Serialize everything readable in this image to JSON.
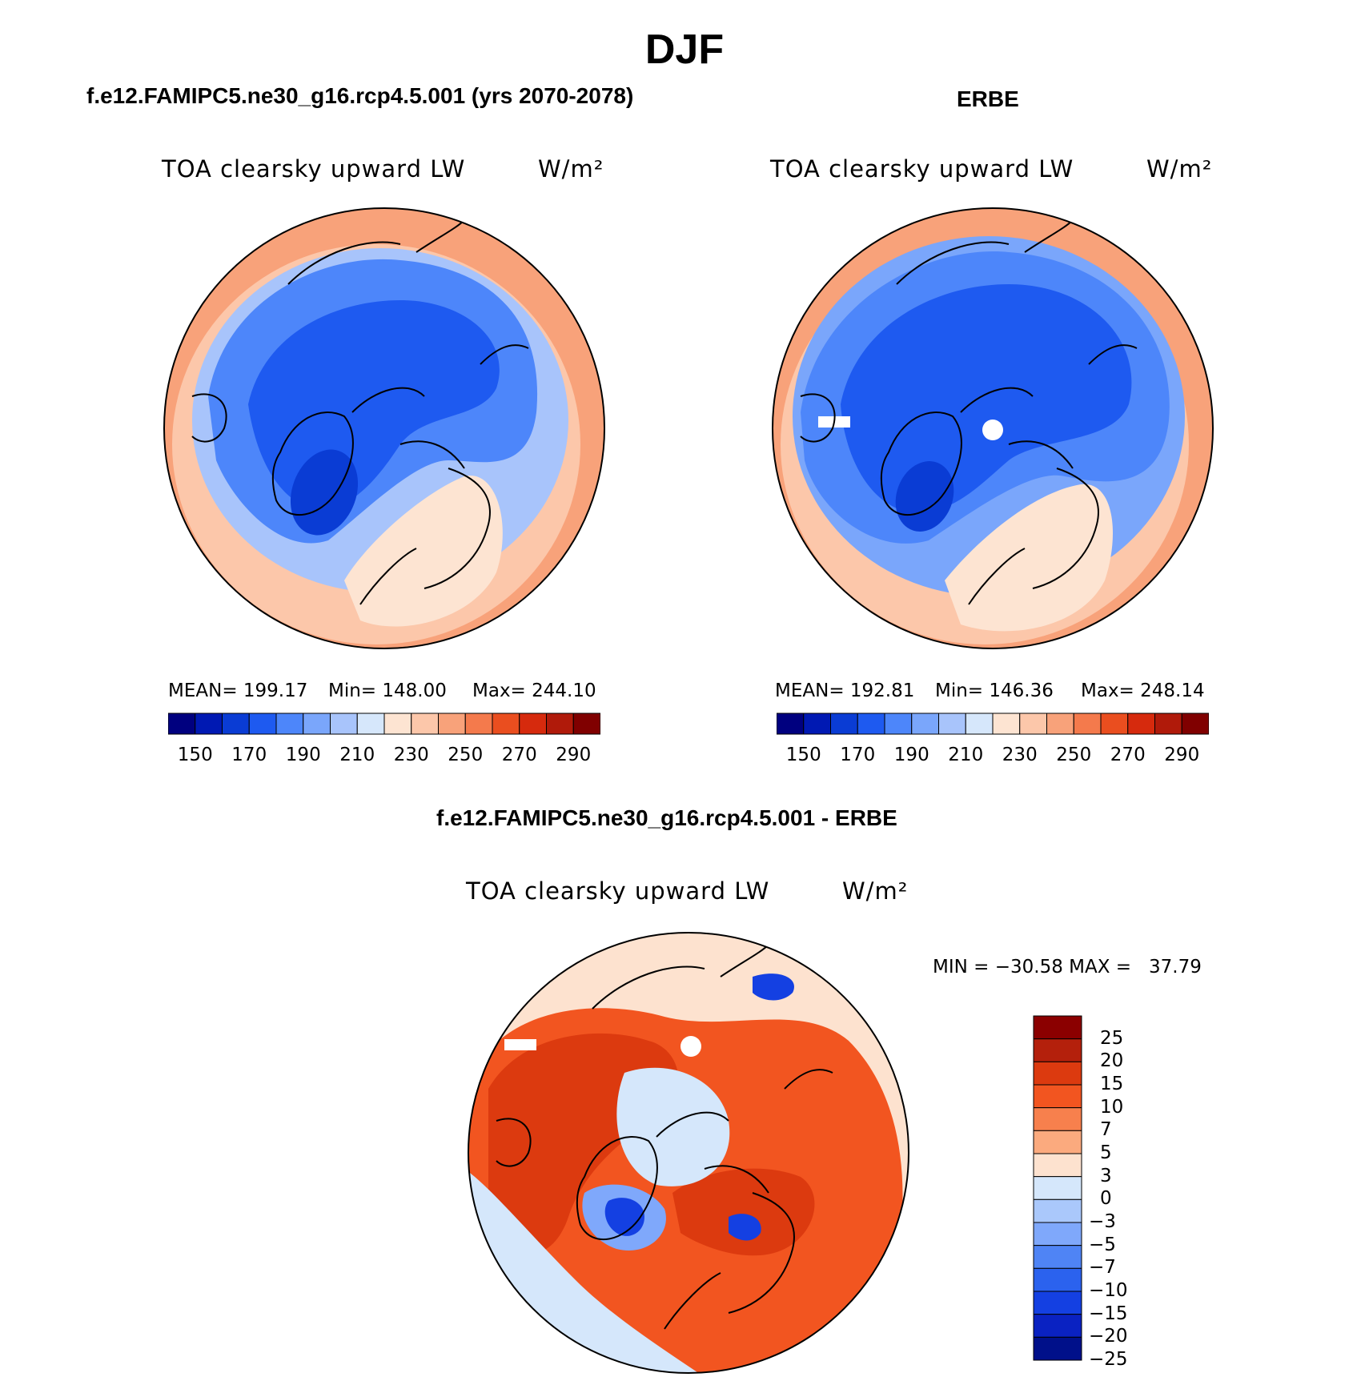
{
  "title": "DJF",
  "panels": {
    "left": {
      "case": "f.e12.FAMIPC5.ne30_g16.rcp4.5.001 (yrs 2070-2078)",
      "variable": "TOA clearsky upward LW",
      "units": "W/m²",
      "stats": {
        "mean": "MEAN= 199.17",
        "min": "Min= 148.00",
        "max": "Max= 244.10"
      }
    },
    "right": {
      "case": "ERBE",
      "variable": "TOA clearsky upward LW",
      "units": "W/m²",
      "stats": {
        "mean": "MEAN= 192.81",
        "min": "Min= 146.36",
        "max": "Max= 248.14"
      }
    },
    "diff": {
      "case": "f.e12.FAMIPC5.ne30_g16.rcp4.5.001 - ERBE",
      "variable": "TOA clearsky upward LW",
      "units": "W/m²",
      "minmax": "MIN = −30.58 MAX =   37.79"
    }
  },
  "colorbar_abs": {
    "colors": [
      "#00007f",
      "#0019b3",
      "#0a3cd4",
      "#1e5af0",
      "#4d86fa",
      "#7aa6fb",
      "#a8c4fb",
      "#d6e7fb",
      "#fde4d2",
      "#fcc7aa",
      "#f8a27a",
      "#f47a4c",
      "#ea4e1f",
      "#d62a0d",
      "#b01a0a",
      "#800000"
    ],
    "tick_labels": [
      "150",
      "170",
      "190",
      "210",
      "230",
      "250",
      "270",
      "290"
    ]
  },
  "colorbar_diff": {
    "colors": [
      "#8b0000",
      "#b4200c",
      "#dc3a0f",
      "#f25520",
      "#f7804d",
      "#fbaa7e",
      "#fde2cf",
      "#d5e7fb",
      "#aac8fb",
      "#7fa8fb",
      "#4f84f5",
      "#2b62ee",
      "#1440e2",
      "#0a22c2",
      "#00108a"
    ],
    "tick_labels": [
      "25",
      "20",
      "15",
      "10",
      "7",
      "5",
      "3",
      "0",
      "−3",
      "−5",
      "−7",
      "−10",
      "−15",
      "−20",
      "−25"
    ]
  },
  "map_fields": {
    "left": {
      "outer_ring": "#f8a27a",
      "midlat_band": "#fcc7aa",
      "subpolar_band": "#a8c4fb",
      "arctic": "#4d86fa",
      "core": "#1e5af0",
      "greenland_min": "#0a3cd4",
      "europe_warm": "#fde4d2"
    },
    "right": {
      "outer_ring": "#f8a27a",
      "midlat_band": "#fcc7aa",
      "subpolar_band": "#7aa6fb",
      "arctic": "#4d86fa",
      "core": "#1e5af0",
      "greenland_min": "#0a3cd4",
      "europe_warm": "#fde4d2"
    },
    "diff": {
      "background": "#fde2cf",
      "warm_dominant": "#f25520",
      "warm_strong": "#dc3a0f",
      "warm_moderate": "#f7804d",
      "cool_weak": "#d5e7fb",
      "cool_moderate": "#7fa8fb",
      "cool_strong": "#1440e2"
    }
  }
}
